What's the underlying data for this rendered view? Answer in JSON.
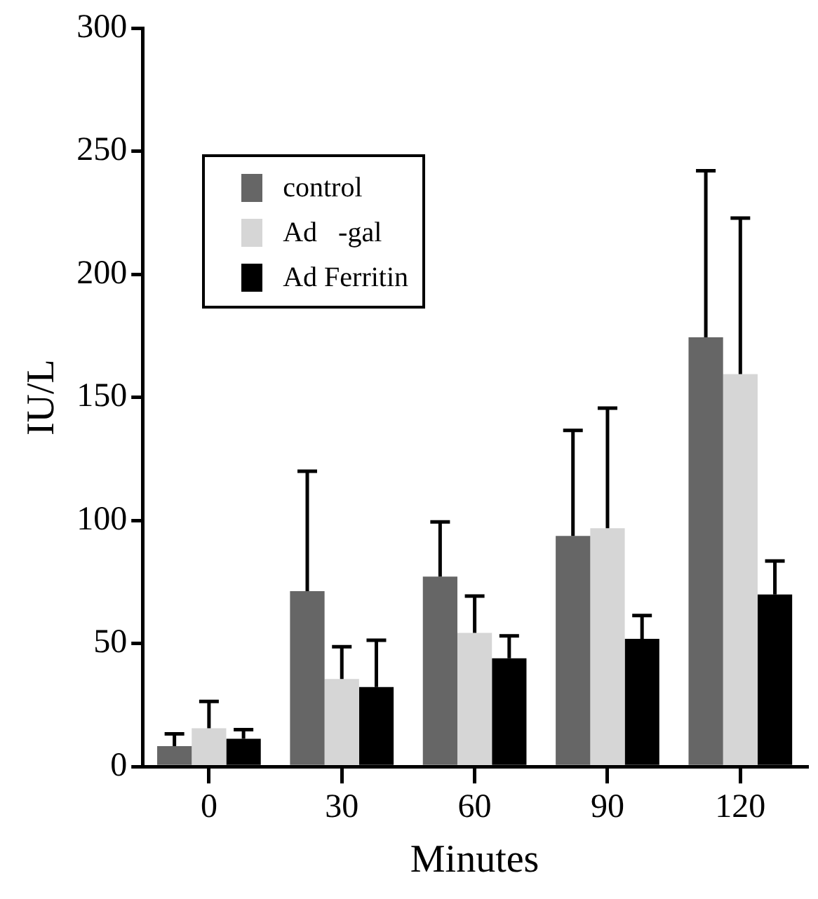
{
  "chart_data": {
    "type": "bar",
    "xlabel": "Minutes",
    "ylabel": "IU/L",
    "categories": [
      "0",
      "30",
      "60",
      "90",
      "120"
    ],
    "series": [
      {
        "name": "control",
        "color": "#666666",
        "values": [
          8.3,
          71.3,
          77.2,
          93.7,
          174.4
        ],
        "errors": [
          [
            8.3,
            13.3
          ],
          [
            71.3,
            120
          ],
          [
            77.2,
            99.4
          ],
          [
            93.7,
            136.6
          ],
          [
            174.4,
            242
          ]
        ]
      },
      {
        "name": "Ad   -gal",
        "color": "#d6d6d6",
        "values": [
          15.6,
          35.6,
          54.3,
          96.8,
          159.4
        ],
        "errors": [
          [
            15.6,
            26.5
          ],
          [
            35.6,
            48.7
          ],
          [
            54.3,
            69.3
          ],
          [
            96.8,
            145.6
          ],
          [
            159.4,
            222.8
          ]
        ]
      },
      {
        "name": "Ad Ferritin",
        "color": "#000000",
        "values": [
          11.3,
          32.3,
          44,
          51.9,
          69.9
        ],
        "errors": [
          [
            11.3,
            15
          ],
          [
            32.3,
            51.3
          ],
          [
            44,
            53.1
          ],
          [
            51.9,
            61.4
          ],
          [
            69.9,
            83.5
          ]
        ]
      }
    ],
    "ylim": [
      0,
      300
    ],
    "yticks": [
      0,
      50,
      100,
      150,
      200,
      250,
      300
    ],
    "grid": false,
    "legend": "top left"
  }
}
